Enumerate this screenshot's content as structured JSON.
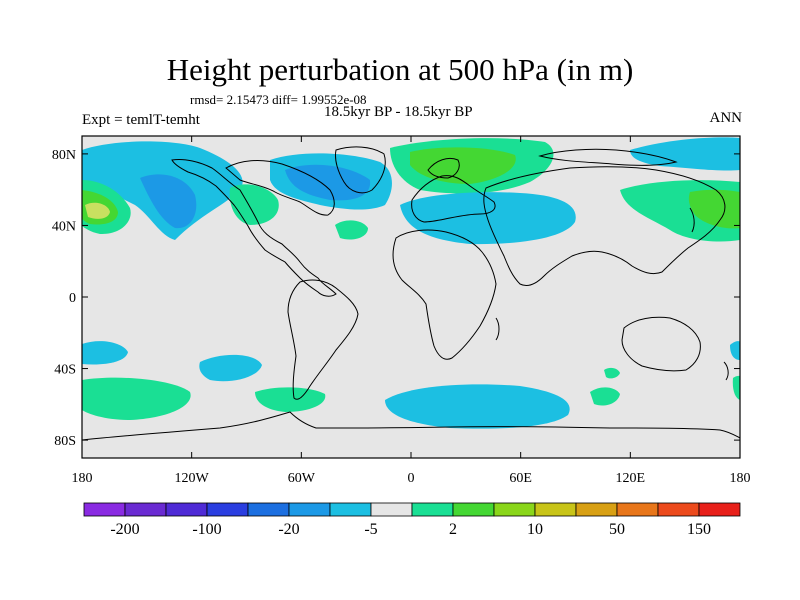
{
  "title": "Height perturbation at 500 hPa (in m)",
  "stats": "rmsd= 2.15473 diff= 1.99552e-08",
  "expt": "Expt = temlT-temht",
  "period": "18.5kyr BP - 18.5kyr BP",
  "season": "ANN",
  "lat_labels": [
    {
      "text": "80N",
      "lat": 80
    },
    {
      "text": "40N",
      "lat": 40
    },
    {
      "text": "0",
      "lat": 0
    },
    {
      "text": "40S",
      "lat": -40
    },
    {
      "text": "80S",
      "lat": -80
    }
  ],
  "lon_labels": [
    {
      "text": "180",
      "lon": -180
    },
    {
      "text": "120W",
      "lon": -120
    },
    {
      "text": "60W",
      "lon": -60
    },
    {
      "text": "0",
      "lon": 0
    },
    {
      "text": "60E",
      "lon": 60
    },
    {
      "text": "120E",
      "lon": 120
    },
    {
      "text": "180",
      "lon": 180
    }
  ],
  "colorbar": {
    "colors": [
      "#8a2be2",
      "#6a2ad2",
      "#4f2bd6",
      "#2a3ee0",
      "#1c6fe0",
      "#1c99e6",
      "#1cbfe2",
      "#e6e6e6",
      "#1adf94",
      "#44d733",
      "#8ad61a",
      "#c8c418",
      "#d8a014",
      "#e8761a",
      "#ec4a1c",
      "#e8201a"
    ],
    "labels": [
      "-200",
      "-100",
      "-20",
      "-5",
      "2",
      "10",
      "50",
      "150"
    ]
  },
  "colors": {
    "land_bg": "#e6e6e6",
    "cyan": "#1cbfe2",
    "blue": "#1c99e6",
    "green": "#1adf94",
    "bright_green": "#44d733",
    "yellow_green": "#c8e060",
    "coast": "#000000"
  }
}
